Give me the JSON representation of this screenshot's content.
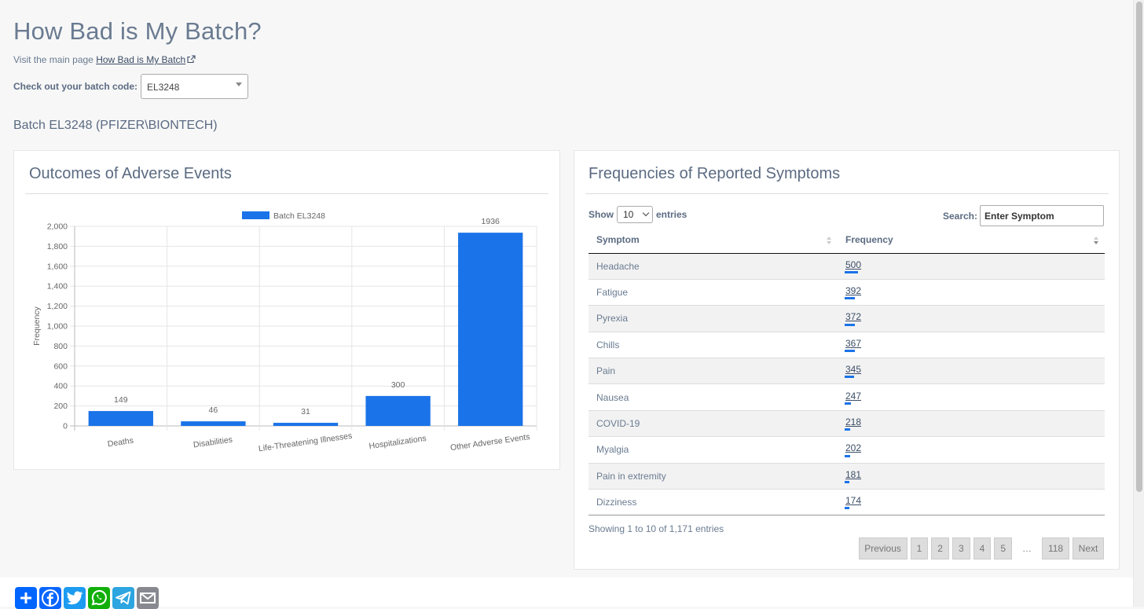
{
  "page": {
    "title": "How Bad is My Batch?",
    "visit_prefix": "Visit the main page",
    "visit_link": "How Bad is My Batch",
    "select_label": "Check out your batch code:",
    "batch_code": "EL3248",
    "batch_heading": "Batch EL3248 (PFIZER\\BIONTECH)"
  },
  "outcomes": {
    "title": "Outcomes of Adverse Events"
  },
  "chart_data": {
    "type": "bar",
    "title": "",
    "xlabel": "",
    "ylabel": "Frequency",
    "categories": [
      "Deaths",
      "Disabilities",
      "Life-Threatening Illnesses",
      "Hospitalizations",
      "Other Adverse Events"
    ],
    "series": [
      {
        "name": "Batch EL3248",
        "values": [
          149,
          46,
          31,
          300,
          1936
        ],
        "color": "#1a73e8"
      }
    ],
    "ylim": [
      0,
      2000
    ],
    "yticks": [
      0,
      200,
      400,
      600,
      800,
      1000,
      1200,
      1400,
      1600,
      1800,
      2000
    ],
    "ytick_labels": [
      "0",
      "200",
      "400",
      "600",
      "800",
      "1,000",
      "1,200",
      "1,400",
      "1,600",
      "1,800",
      "2,000"
    ],
    "data_labels": [
      "149",
      "46",
      "31",
      "300",
      "1936"
    ],
    "grid": true,
    "legend": "top-center"
  },
  "symptoms": {
    "title": "Frequencies of Reported Symptoms",
    "show_label": "Show",
    "entries_label": "entries",
    "page_length": "10",
    "search_label": "Search:",
    "search_placeholder": "Enter Symptom",
    "columns": [
      "Symptom",
      "Frequency"
    ],
    "rows": [
      {
        "symptom": "Headache",
        "frequency": "500",
        "value": 500
      },
      {
        "symptom": "Fatigue",
        "frequency": "392",
        "value": 392
      },
      {
        "symptom": "Pyrexia",
        "frequency": "372",
        "value": 372
      },
      {
        "symptom": "Chills",
        "frequency": "367",
        "value": 367
      },
      {
        "symptom": "Pain",
        "frequency": "345",
        "value": 345
      },
      {
        "symptom": "Nausea",
        "frequency": "247",
        "value": 247
      },
      {
        "symptom": "COVID-19",
        "frequency": "218",
        "value": 218
      },
      {
        "symptom": "Myalgia",
        "frequency": "202",
        "value": 202
      },
      {
        "symptom": "Pain in extremity",
        "frequency": "181",
        "value": 181
      },
      {
        "symptom": "Dizziness",
        "frequency": "174",
        "value": 174
      }
    ],
    "info": "Showing 1 to 10 of 1,171 entries",
    "pager": {
      "previous": "Previous",
      "pages": [
        "1",
        "2",
        "3",
        "4",
        "5"
      ],
      "ellipsis": "…",
      "last": "118",
      "next": "Next"
    }
  },
  "share": {
    "buttons": [
      {
        "name": "add-share-icon",
        "color": "#0166ff"
      },
      {
        "name": "facebook-icon",
        "color": "#0866ff"
      },
      {
        "name": "twitter-icon",
        "color": "#1d9bf0"
      },
      {
        "name": "whatsapp-icon",
        "color": "#12af0a"
      },
      {
        "name": "telegram-icon",
        "color": "#2ca5e0"
      },
      {
        "name": "email-icon",
        "color": "#888990"
      }
    ]
  }
}
